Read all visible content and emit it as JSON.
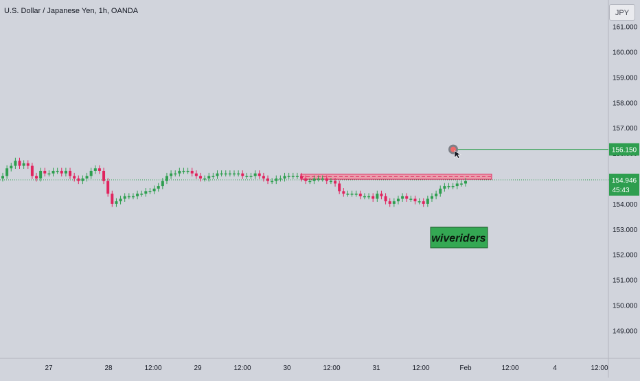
{
  "title": "U.S. Dollar / Japanese Yen, 1h, OANDA",
  "currency_button": "JPY",
  "watermark_label": "wiveriders",
  "colors": {
    "background": "#d1d4dc",
    "up": "#2e9e4f",
    "down": "#e0245e",
    "target_line": "#2e9e4f",
    "zone_fill": "#f28c9c",
    "zone_border": "#e0245e",
    "label_bg": "#2e9e4f",
    "watermark_bg": "#34a853"
  },
  "chart_data": {
    "type": "candlestick",
    "title": "U.S. Dollar / Japanese Yen, 1h, OANDA",
    "ylim": [
      148,
      161.5
    ],
    "y_ticks": [
      "161.000",
      "160.000",
      "159.000",
      "158.000",
      "157.000",
      "156.000",
      "155.000",
      "154.000",
      "153.000",
      "152.000",
      "151.000",
      "150.000",
      "149.000"
    ],
    "x_ticks": [
      {
        "label": "27",
        "i": 0
      },
      {
        "label": "28",
        "i": 1
      },
      {
        "label": "12:00",
        "i": 2
      },
      {
        "label": "29",
        "i": 3
      },
      {
        "label": "12:00",
        "i": 4
      },
      {
        "label": "30",
        "i": 5
      },
      {
        "label": "12:00",
        "i": 6
      },
      {
        "label": "31",
        "i": 7
      },
      {
        "label": "12:00",
        "i": 8
      },
      {
        "label": "Feb",
        "i": 9
      },
      {
        "label": "12:00",
        "i": 10
      },
      {
        "label": "4",
        "i": 11
      },
      {
        "label": "12:00",
        "i": 12
      }
    ],
    "candles_close": [
      155.1,
      155.4,
      155.5,
      155.7,
      155.5,
      155.6,
      155.5,
      155.1,
      155.0,
      155.3,
      155.2,
      155.2,
      155.3,
      155.3,
      155.2,
      155.3,
      155.1,
      155.0,
      154.9,
      155.0,
      155.1,
      155.3,
      155.4,
      155.3,
      154.9,
      154.4,
      154.0,
      154.1,
      154.2,
      154.3,
      154.3,
      154.3,
      154.4,
      154.4,
      154.5,
      154.5,
      154.6,
      154.7,
      154.9,
      155.1,
      155.2,
      155.2,
      155.3,
      155.3,
      155.3,
      155.2,
      155.1,
      155.0,
      155.0,
      155.1,
      155.1,
      155.2,
      155.2,
      155.2,
      155.2,
      155.2,
      155.2,
      155.1,
      155.1,
      155.1,
      155.2,
      155.1,
      155.0,
      154.9,
      154.9,
      155.0,
      155.0,
      155.1,
      155.1,
      155.1,
      155.1,
      155.0,
      154.9,
      154.9,
      155.0,
      155.0,
      155.0,
      154.9,
      154.9,
      154.8,
      154.5,
      154.4,
      154.4,
      154.4,
      154.4,
      154.3,
      154.3,
      154.3,
      154.2,
      154.4,
      154.3,
      154.1,
      154.0,
      154.1,
      154.2,
      154.3,
      154.2,
      154.2,
      154.1,
      154.1,
      154.0,
      154.2,
      154.3,
      154.4,
      154.6,
      154.7,
      154.7,
      154.7,
      154.8,
      154.8,
      154.9
    ],
    "current_price": "154.946",
    "countdown": "45:43",
    "target_price": "156.150",
    "resistance_zone": [
      154.97,
      155.17
    ]
  }
}
